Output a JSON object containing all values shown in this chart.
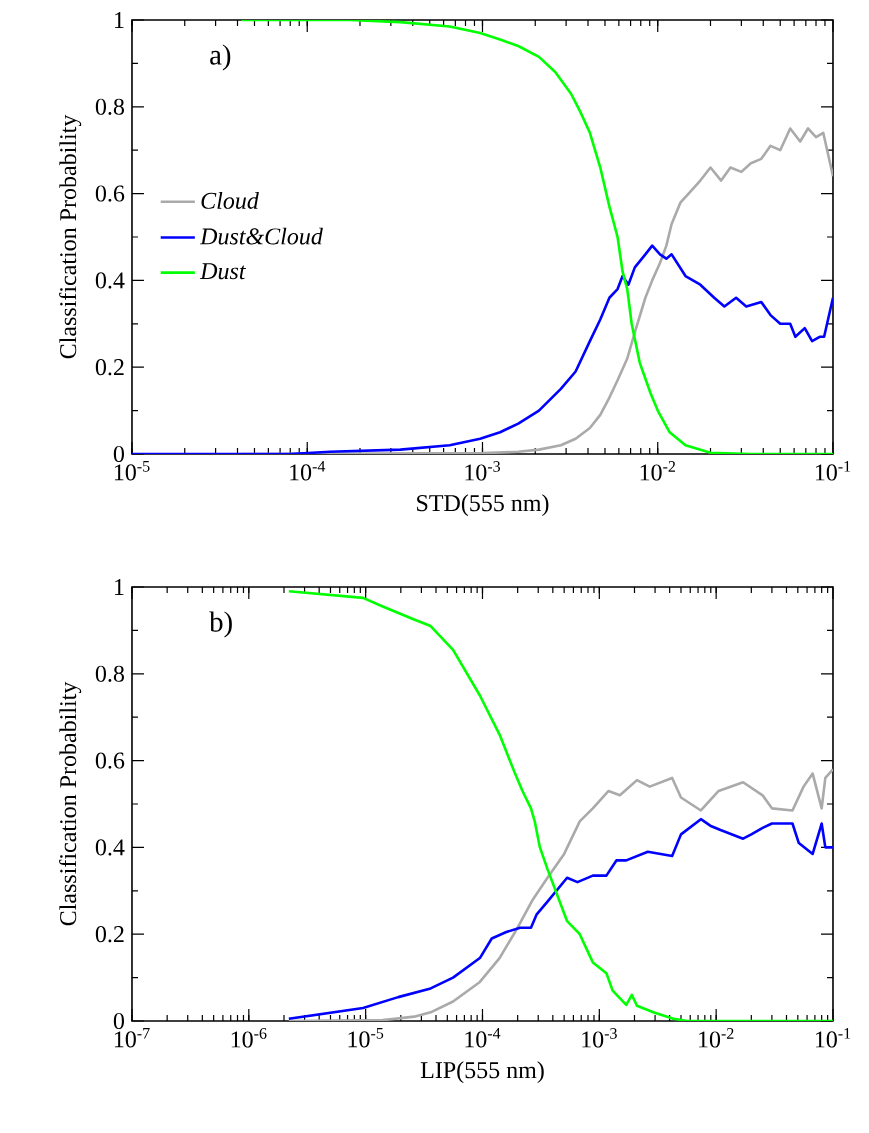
{
  "chart_data": [
    {
      "type": "line",
      "xlabel": "STD(555 nm)",
      "ylabel": "Classification Probability",
      "annotations": [
        "a)"
      ],
      "log": "x",
      "legend": "center left",
      "line_style": "solid",
      "xlim": [
        1e-05,
        0.1
      ],
      "ylim": [
        0,
        1
      ],
      "xticks": [
        {
          "value": 1e-05,
          "label": "10$^{-5}$"
        },
        {
          "value": 0.0001,
          "label": "10$^{-4}$"
        },
        {
          "value": 0.001,
          "label": "10$^{-3}$"
        },
        {
          "value": 0.01,
          "label": "10$^{-2}$"
        },
        {
          "value": 0.1,
          "label": "10$^{-1}$"
        }
      ],
      "yticks": [
        0,
        0.2,
        0.4,
        0.6,
        0.8,
        1
      ],
      "series": [
        {
          "name": "Cloud",
          "color": "#aaaaaa",
          "x": [
            4.2e-05,
            0.001,
            0.0016,
            0.0021,
            0.0028,
            0.0034,
            0.0041,
            0.0047,
            0.0053,
            0.0059,
            0.0067,
            0.0074,
            0.0085,
            0.0093,
            0.0103,
            0.0112,
            0.012,
            0.0135,
            0.015,
            0.0175,
            0.02,
            0.023,
            0.026,
            0.03,
            0.034,
            0.039,
            0.044,
            0.05,
            0.057,
            0.065,
            0.072,
            0.08,
            0.088,
            0.1
          ],
          "values": [
            0,
            0.002,
            0.005,
            0.01,
            0.02,
            0.035,
            0.06,
            0.09,
            0.13,
            0.17,
            0.22,
            0.28,
            0.36,
            0.4,
            0.44,
            0.48,
            0.53,
            0.58,
            0.6,
            0.63,
            0.66,
            0.63,
            0.66,
            0.65,
            0.67,
            0.68,
            0.71,
            0.7,
            0.75,
            0.72,
            0.75,
            0.73,
            0.74,
            0.64
          ]
        },
        {
          "name": "Dust&Cloud",
          "color": "#0000ff",
          "x": [
            1e-05,
            7.9e-05,
            0.000135,
            0.00034,
            0.00065,
            0.00097,
            0.00126,
            0.0016,
            0.0021,
            0.0028,
            0.0034,
            0.0041,
            0.0047,
            0.0053,
            0.0059,
            0.0063,
            0.0068,
            0.0074,
            0.0085,
            0.0093,
            0.0103,
            0.0112,
            0.012,
            0.0144,
            0.0175,
            0.021,
            0.024,
            0.028,
            0.032,
            0.039,
            0.044,
            0.05,
            0.057,
            0.061,
            0.069,
            0.076,
            0.084,
            0.089,
            0.1
          ],
          "values": [
            0,
            0,
            0.005,
            0.01,
            0.02,
            0.035,
            0.05,
            0.07,
            0.1,
            0.15,
            0.19,
            0.26,
            0.31,
            0.36,
            0.38,
            0.41,
            0.39,
            0.43,
            0.46,
            0.48,
            0.46,
            0.45,
            0.46,
            0.41,
            0.39,
            0.36,
            0.34,
            0.36,
            0.34,
            0.35,
            0.32,
            0.3,
            0.3,
            0.27,
            0.29,
            0.26,
            0.27,
            0.27,
            0.36
          ]
        },
        {
          "name": "Dust",
          "color": "#00ff00",
          "x": [
            4.2e-05,
            0.000175,
            0.00034,
            0.00065,
            0.00097,
            0.00126,
            0.0016,
            0.0021,
            0.0026,
            0.0032,
            0.0036,
            0.0041,
            0.0047,
            0.0053,
            0.0059,
            0.0063,
            0.0067,
            0.0071,
            0.0079,
            0.0091,
            0.01,
            0.0117,
            0.0144,
            0.02,
            0.034,
            0.1
          ],
          "values": [
            1,
            1,
            0.995,
            0.985,
            0.97,
            0.955,
            0.94,
            0.915,
            0.88,
            0.83,
            0.79,
            0.74,
            0.66,
            0.57,
            0.5,
            0.42,
            0.38,
            0.3,
            0.21,
            0.14,
            0.1,
            0.05,
            0.02,
            0.003,
            0,
            0
          ]
        }
      ]
    },
    {
      "type": "line",
      "xlabel": "LIP(555 nm)",
      "ylabel": "Classification Probability",
      "annotations": [
        "b)"
      ],
      "log": "x",
      "line_style": "solid",
      "xlim": [
        1e-07,
        0.1
      ],
      "ylim": [
        0,
        1
      ],
      "xticks": [
        {
          "value": 1e-07,
          "label": "10$^{-7}$"
        },
        {
          "value": 1e-06,
          "label": "10$^{-6}$"
        },
        {
          "value": 1e-05,
          "label": "10$^{-5}$"
        },
        {
          "value": 0.0001,
          "label": "10$^{-4}$"
        },
        {
          "value": 0.001,
          "label": "10$^{-3}$"
        },
        {
          "value": 0.01,
          "label": "10$^{-2}$"
        },
        {
          "value": 0.1,
          "label": "10$^{-1}$"
        }
      ],
      "yticks": [
        0,
        0.2,
        0.4,
        0.6,
        0.8,
        1
      ],
      "series": [
        {
          "color": "#aaaaaa",
          "x": [
            2.2e-06,
            1.4e-05,
            2.6e-05,
            3.6e-05,
            5.6e-05,
            9.5e-05,
            0.00014,
            0.000195,
            0.00027,
            0.00036,
            0.0005,
            0.00068,
            0.00088,
            0.0012,
            0.0015,
            0.0021,
            0.0027,
            0.0042,
            0.005,
            0.0074,
            0.0105,
            0.017,
            0.025,
            0.03,
            0.045,
            0.056,
            0.067,
            0.08,
            0.086,
            0.1
          ],
          "values": [
            0,
            0.002,
            0.01,
            0.02,
            0.045,
            0.09,
            0.145,
            0.21,
            0.28,
            0.33,
            0.385,
            0.46,
            0.49,
            0.53,
            0.52,
            0.555,
            0.54,
            0.56,
            0.515,
            0.485,
            0.53,
            0.55,
            0.52,
            0.49,
            0.485,
            0.54,
            0.57,
            0.49,
            0.56,
            0.58
          ]
        },
        {
          "color": "#0000ff",
          "x": [
            2.2e-06,
            9.5e-06,
            1.9e-05,
            3.6e-05,
            5.6e-05,
            9.5e-05,
            0.00012,
            0.00016,
            0.00021,
            0.00026,
            0.00029,
            0.00036,
            0.00053,
            0.00065,
            0.00088,
            0.00115,
            0.0014,
            0.0017,
            0.0026,
            0.0042,
            0.005,
            0.0074,
            0.0089,
            0.0109,
            0.017,
            0.02,
            0.025,
            0.03,
            0.045,
            0.051,
            0.067,
            0.08,
            0.086,
            0.1
          ],
          "values": [
            0.005,
            0.03,
            0.055,
            0.075,
            0.1,
            0.145,
            0.19,
            0.205,
            0.215,
            0.215,
            0.245,
            0.275,
            0.33,
            0.32,
            0.335,
            0.335,
            0.37,
            0.37,
            0.39,
            0.38,
            0.43,
            0.465,
            0.45,
            0.44,
            0.42,
            0.43,
            0.445,
            0.455,
            0.455,
            0.41,
            0.385,
            0.455,
            0.4,
            0.4
          ]
        },
        {
          "color": "#00ff00",
          "x": [
            2.2e-06,
            9.5e-06,
            1.4e-05,
            2.6e-05,
            3.6e-05,
            5.6e-05,
            9.5e-05,
            0.00014,
            0.00019,
            0.00022,
            0.00026,
            0.00028,
            0.00031,
            0.00036,
            0.00053,
            0.00068,
            0.00088,
            0.00115,
            0.0013,
            0.0017,
            0.0019,
            0.0021,
            0.0029,
            0.0043,
            0.0057,
            0.1
          ],
          "values": [
            0.99,
            0.975,
            0.955,
            0.925,
            0.91,
            0.855,
            0.75,
            0.66,
            0.57,
            0.53,
            0.49,
            0.46,
            0.4,
            0.35,
            0.23,
            0.2,
            0.135,
            0.11,
            0.07,
            0.037,
            0.06,
            0.035,
            0.02,
            0.005,
            0,
            0
          ]
        }
      ]
    }
  ]
}
